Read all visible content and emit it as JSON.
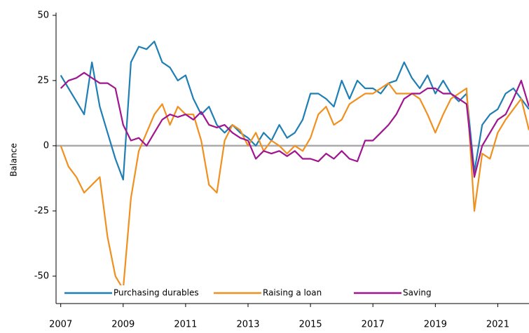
{
  "chart_data": {
    "type": "line",
    "ylabel": "Balance",
    "x": [
      2007.0,
      2007.25,
      2007.5,
      2007.75,
      2008.0,
      2008.25,
      2008.5,
      2008.75,
      2009.0,
      2009.25,
      2009.5,
      2009.75,
      2010.0,
      2010.25,
      2010.5,
      2010.75,
      2011.0,
      2011.25,
      2011.5,
      2011.75,
      2012.0,
      2012.25,
      2012.5,
      2012.75,
      2013.0,
      2013.25,
      2013.5,
      2013.75,
      2014.0,
      2014.25,
      2014.5,
      2014.75,
      2015.0,
      2015.25,
      2015.5,
      2015.75,
      2016.0,
      2016.25,
      2016.5,
      2016.75,
      2017.0,
      2017.25,
      2017.5,
      2017.75,
      2018.0,
      2018.25,
      2018.5,
      2018.75,
      2019.0,
      2019.25,
      2019.5,
      2019.75,
      2020.0,
      2020.25,
      2020.5,
      2020.75,
      2021.0,
      2021.25,
      2021.5,
      2021.75,
      2022.0
    ],
    "series": [
      {
        "name": "Purchasing durables",
        "color": "#1f7fb4",
        "values": [
          27,
          22,
          17,
          12,
          32,
          15,
          5,
          -5,
          -13,
          32,
          38,
          37,
          40,
          32,
          30,
          25,
          27,
          18,
          12,
          15,
          8,
          5,
          8,
          5,
          3,
          0,
          5,
          2,
          8,
          3,
          5,
          10,
          20,
          20,
          18,
          15,
          25,
          18,
          25,
          22,
          22,
          20,
          24,
          25,
          32,
          26,
          22,
          27,
          20,
          25,
          20,
          17,
          20,
          -10,
          8,
          12,
          14,
          20,
          22,
          18,
          14
        ]
      },
      {
        "name": "Raising a loan",
        "color": "#f0901e",
        "values": [
          0,
          -8,
          -12,
          -18,
          -15,
          -12,
          -35,
          -50,
          -55,
          -20,
          -2,
          5,
          12,
          16,
          8,
          15,
          12,
          12,
          2,
          -15,
          -18,
          2,
          8,
          6,
          0,
          5,
          -2,
          2,
          0,
          -3,
          0,
          -2,
          3,
          12,
          15,
          8,
          10,
          16,
          18,
          20,
          20,
          22,
          24,
          20,
          20,
          20,
          18,
          12,
          5,
          12,
          18,
          20,
          22,
          -25,
          -3,
          -5,
          5,
          10,
          14,
          18,
          6
        ]
      },
      {
        "name": "Saving",
        "color": "#a0158f",
        "values": [
          22,
          25,
          26,
          28,
          26,
          24,
          24,
          22,
          8,
          2,
          3,
          0,
          5,
          10,
          12,
          11,
          12,
          10,
          13,
          8,
          7,
          8,
          5,
          3,
          2,
          -5,
          -2,
          -3,
          -2,
          -4,
          -2,
          -5,
          -5,
          -6,
          -3,
          -5,
          -2,
          -5,
          -6,
          2,
          2,
          5,
          8,
          12,
          18,
          20,
          20,
          22,
          22,
          20,
          20,
          18,
          16,
          -12,
          0,
          5,
          10,
          12,
          18,
          25,
          15
        ]
      }
    ],
    "xlim": [
      2006.85,
      2022
    ],
    "xticks": [
      2007,
      2009,
      2011,
      2013,
      2015,
      2017,
      2019,
      2021
    ],
    "ylim": [
      -60.5,
      50.5
    ],
    "yticks": [
      50,
      25,
      0,
      -25,
      -50
    ],
    "reference_line": 0,
    "grid": false,
    "legend": "bottom"
  }
}
